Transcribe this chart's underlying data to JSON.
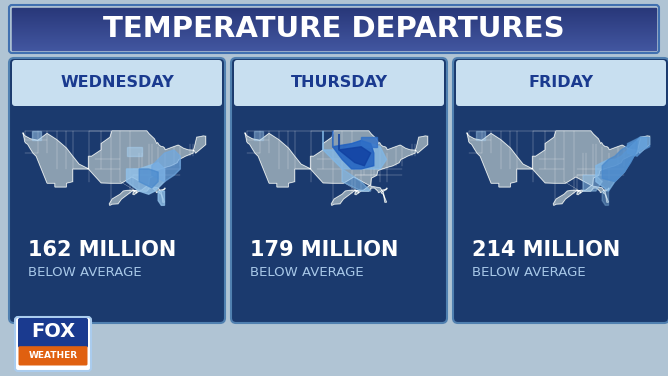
{
  "title": "TEMPERATURE DEPARTURES",
  "title_bg_top": "#2a5298",
  "title_bg_bot": "#1a3060",
  "title_color": "#ffffff",
  "days": [
    "WEDNESDAY",
    "THURSDAY",
    "FRIDAY"
  ],
  "values": [
    "162 MILLION",
    "179 MILLION",
    "214 MILLION"
  ],
  "subtitle": "BELOW AVERAGE",
  "card_bg": "#1b3a6e",
  "card_header_bg": "#c8dff0",
  "day_color": "#1a3a8f",
  "value_color": "#ffffff",
  "subtitle_color": "#a8c8e8",
  "outer_bg_top": "#b0c8d8",
  "outer_bg_bot": "#c8d8e8",
  "fig_width": 6.68,
  "fig_height": 3.76,
  "map_base_color": "#8a9eb0",
  "map_state_line_color": "#ffffff",
  "map_bg": "#1b3a6e",
  "card_border_color": "#5080b0",
  "logo_box_color": "#1a3a8f",
  "logo_weather_color": "#e06010"
}
